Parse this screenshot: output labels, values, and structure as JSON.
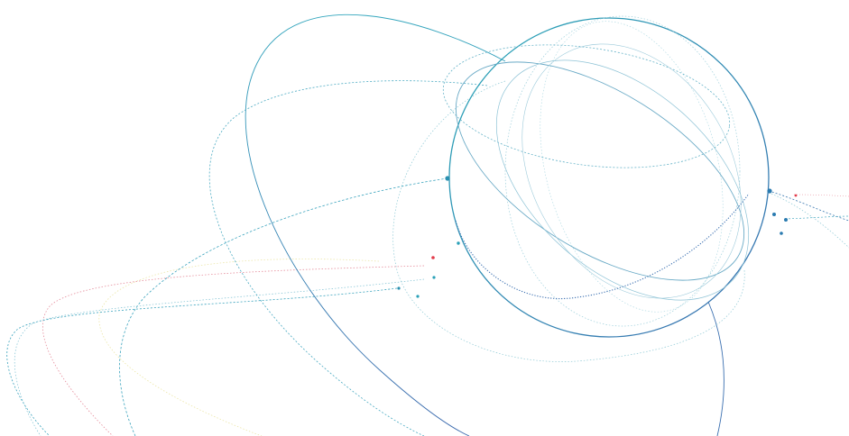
{
  "colors": {
    "background": "#ffffff",
    "teal": "#2aa0b8",
    "blue": "#3a78b0",
    "pale_teal": "#8cc8d4",
    "pink": "#e07a8c",
    "yellow": "#e8e0a0",
    "red_dot": "#e23a4a"
  }
}
